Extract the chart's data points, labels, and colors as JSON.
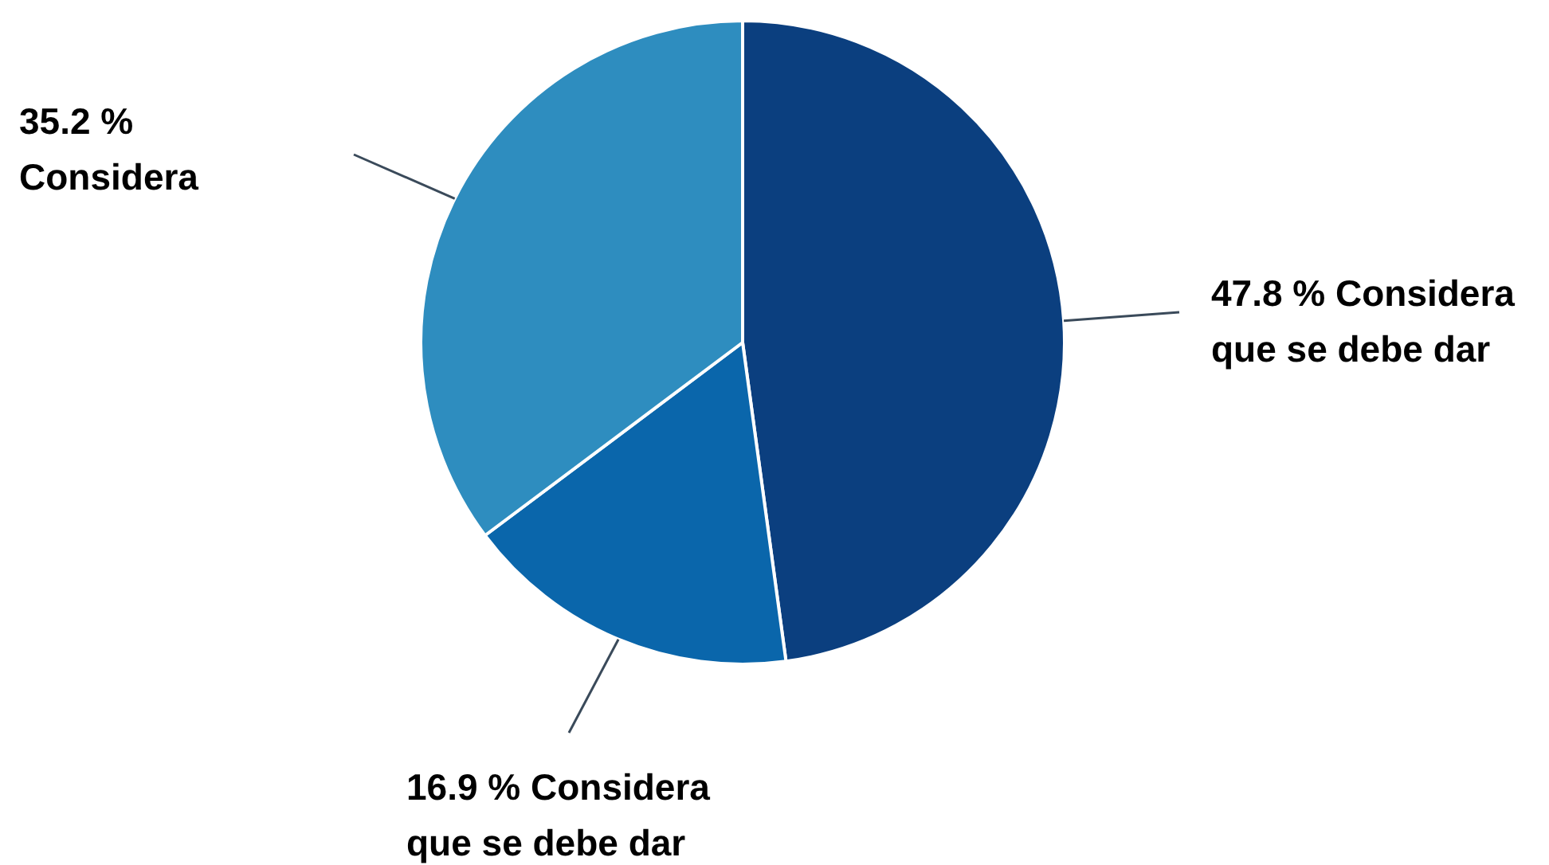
{
  "chart_data": {
    "type": "pie",
    "categories": [
      "Considera que se debe dar",
      "Considera que se debe dar",
      "Considera"
    ],
    "values": [
      47.8,
      16.9,
      35.2
    ],
    "value_labels": [
      "47.8 %",
      "16.9 %",
      "35.2 %"
    ],
    "colors": [
      "#0b3f7f",
      "#0a66ab",
      "#2e8dbf"
    ],
    "legend": false
  }
}
